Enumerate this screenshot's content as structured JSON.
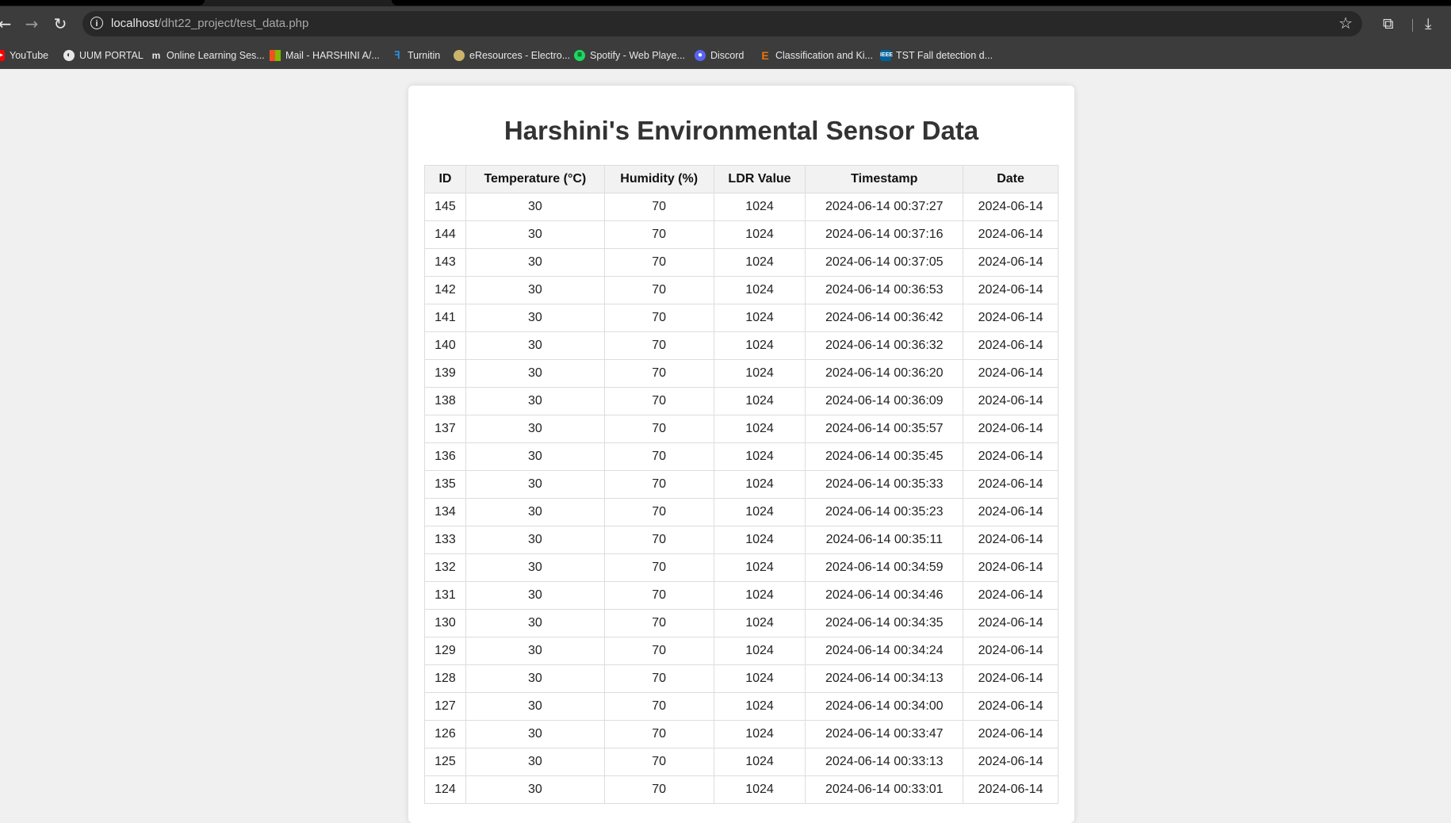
{
  "browser": {
    "url_host": "localhost",
    "url_path": "/dht22_project/test_data.php",
    "bookmarks": [
      {
        "label": "YouTube",
        "icon": "youtube-icon",
        "color": "#ff0000"
      },
      {
        "label": "UUM PORTAL",
        "icon": "globe-icon",
        "color": "#ffffff"
      },
      {
        "label": "Online Learning Ses...",
        "icon": "moodle-icon",
        "color": "#ffffff"
      },
      {
        "label": "Mail - HARSHINI A/...",
        "icon": "microsoft-icon",
        "color": "#f25022"
      },
      {
        "label": "Turnitin",
        "icon": "turnitin-icon",
        "color": "#2d8fdd"
      },
      {
        "label": "eResources - Electro...",
        "icon": "crest-icon",
        "color": "#c9b46a"
      },
      {
        "label": "Spotify - Web Playe...",
        "icon": "spotify-icon",
        "color": "#1ed760"
      },
      {
        "label": "Discord",
        "icon": "discord-icon",
        "color": "#5865f2"
      },
      {
        "label": "Classification and Ki...",
        "icon": "letter-e-icon",
        "color": "#e8750c"
      },
      {
        "label": "TST Fall detection d...",
        "icon": "ieee-icon",
        "color": "#00629b"
      }
    ]
  },
  "page": {
    "title": "Harshini's Environmental Sensor Data",
    "columns": [
      "ID",
      "Temperature (°C)",
      "Humidity (%)",
      "LDR Value",
      "Timestamp",
      "Date"
    ],
    "rows": [
      [
        "145",
        "30",
        "70",
        "1024",
        "2024-06-14 00:37:27",
        "2024-06-14"
      ],
      [
        "144",
        "30",
        "70",
        "1024",
        "2024-06-14 00:37:16",
        "2024-06-14"
      ],
      [
        "143",
        "30",
        "70",
        "1024",
        "2024-06-14 00:37:05",
        "2024-06-14"
      ],
      [
        "142",
        "30",
        "70",
        "1024",
        "2024-06-14 00:36:53",
        "2024-06-14"
      ],
      [
        "141",
        "30",
        "70",
        "1024",
        "2024-06-14 00:36:42",
        "2024-06-14"
      ],
      [
        "140",
        "30",
        "70",
        "1024",
        "2024-06-14 00:36:32",
        "2024-06-14"
      ],
      [
        "139",
        "30",
        "70",
        "1024",
        "2024-06-14 00:36:20",
        "2024-06-14"
      ],
      [
        "138",
        "30",
        "70",
        "1024",
        "2024-06-14 00:36:09",
        "2024-06-14"
      ],
      [
        "137",
        "30",
        "70",
        "1024",
        "2024-06-14 00:35:57",
        "2024-06-14"
      ],
      [
        "136",
        "30",
        "70",
        "1024",
        "2024-06-14 00:35:45",
        "2024-06-14"
      ],
      [
        "135",
        "30",
        "70",
        "1024",
        "2024-06-14 00:35:33",
        "2024-06-14"
      ],
      [
        "134",
        "30",
        "70",
        "1024",
        "2024-06-14 00:35:23",
        "2024-06-14"
      ],
      [
        "133",
        "30",
        "70",
        "1024",
        "2024-06-14 00:35:11",
        "2024-06-14"
      ],
      [
        "132",
        "30",
        "70",
        "1024",
        "2024-06-14 00:34:59",
        "2024-06-14"
      ],
      [
        "131",
        "30",
        "70",
        "1024",
        "2024-06-14 00:34:46",
        "2024-06-14"
      ],
      [
        "130",
        "30",
        "70",
        "1024",
        "2024-06-14 00:34:35",
        "2024-06-14"
      ],
      [
        "129",
        "30",
        "70",
        "1024",
        "2024-06-14 00:34:24",
        "2024-06-14"
      ],
      [
        "128",
        "30",
        "70",
        "1024",
        "2024-06-14 00:34:13",
        "2024-06-14"
      ],
      [
        "127",
        "30",
        "70",
        "1024",
        "2024-06-14 00:34:00",
        "2024-06-14"
      ],
      [
        "126",
        "30",
        "70",
        "1024",
        "2024-06-14 00:33:47",
        "2024-06-14"
      ],
      [
        "125",
        "30",
        "70",
        "1024",
        "2024-06-14 00:33:13",
        "2024-06-14"
      ],
      [
        "124",
        "30",
        "70",
        "1024",
        "2024-06-14 00:33:01",
        "2024-06-14"
      ]
    ]
  }
}
